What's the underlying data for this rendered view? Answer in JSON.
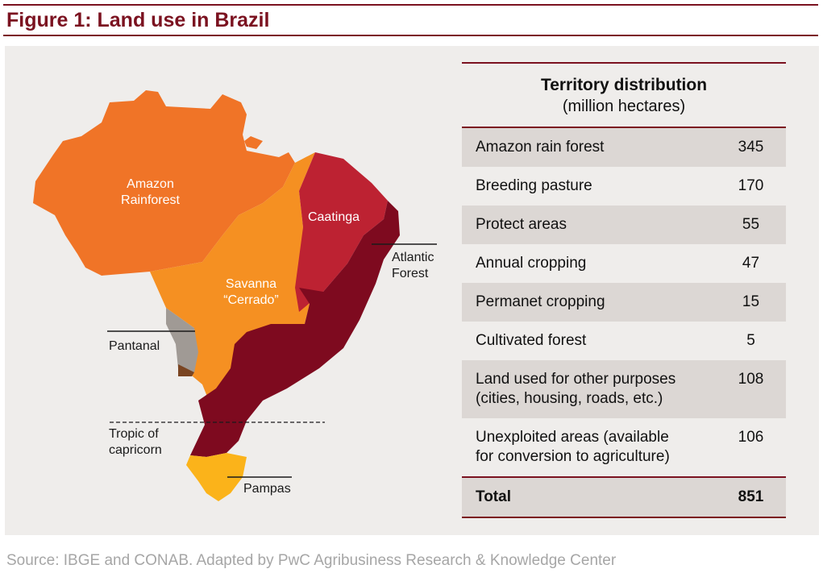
{
  "title": "Figure 1: Land use in Brazil",
  "map": {
    "regions": [
      {
        "id": "amazon",
        "label_lines": [
          "Amazon",
          "Rainforest"
        ],
        "color": "#f07427"
      },
      {
        "id": "savanna",
        "label_lines": [
          "Savanna",
          "“Cerrado”"
        ],
        "color": "#f59022"
      },
      {
        "id": "caatinga",
        "label_lines": [
          "Caatinga"
        ],
        "color": "#bd2232"
      },
      {
        "id": "atlantic",
        "label_lines": [
          "Atlantic",
          "Forest"
        ],
        "color": "#7e0a1f"
      },
      {
        "id": "pantanal",
        "label_lines": [
          "Pantanal"
        ],
        "color": "#a09a95"
      },
      {
        "id": "pampas",
        "label_lines": [
          "Pampas"
        ],
        "color": "#fbb31a"
      }
    ],
    "tropic_label_lines": [
      "Tropic of",
      "capricorn"
    ]
  },
  "table": {
    "title": "Territory distribution",
    "subtitle": "(million hectares)",
    "rows": [
      {
        "label_lines": [
          "Amazon rain forest"
        ],
        "value": "345"
      },
      {
        "label_lines": [
          "Breeding pasture"
        ],
        "value": "170"
      },
      {
        "label_lines": [
          "Protect areas"
        ],
        "value": "55"
      },
      {
        "label_lines": [
          "Annual cropping"
        ],
        "value": "47"
      },
      {
        "label_lines": [
          "Permanet cropping"
        ],
        "value": "15"
      },
      {
        "label_lines": [
          "Cultivated forest"
        ],
        "value": "5"
      },
      {
        "label_lines": [
          "Land used for other purposes",
          "(cities, housing, roads, etc.)"
        ],
        "value": "108"
      },
      {
        "label_lines": [
          "Unexploited areas (available",
          "for conversion to agriculture)"
        ],
        "value": "106"
      }
    ],
    "total": {
      "label": "Total",
      "value": "851"
    }
  },
  "colors": {
    "accent": "#7b1220",
    "panel": "#efedeb",
    "row_shade": "#dcd7d4"
  },
  "source": "Source: IBGE and CONAB. Adapted by PwC Agribusiness Research & Knowledge Center"
}
